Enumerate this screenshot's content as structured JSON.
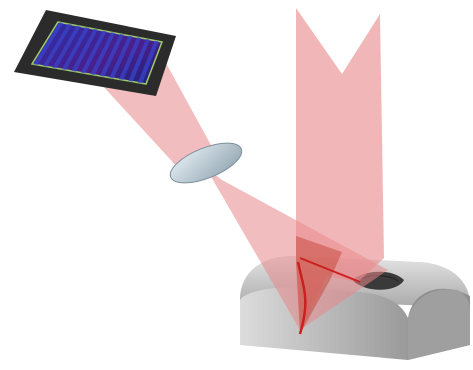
{
  "diagram": {
    "components": [
      {
        "id": "image-sensor",
        "kind": "camera-sensor-chip",
        "stripes": 12
      },
      {
        "id": "imaging-lens",
        "kind": "lens"
      },
      {
        "id": "laser-sheet",
        "kind": "laser-plane",
        "shape": "notched-fan"
      },
      {
        "id": "object",
        "kind": "half-cylinder-with-groove"
      },
      {
        "id": "viewing-cone",
        "kind": "light-path"
      }
    ],
    "colors": {
      "beam": "#e8878a",
      "beam_dark": "#c0392b",
      "laser_line": "#cc1f1f",
      "sensor_frame": "#2b2b2b",
      "sensor_fill": "#1a1f8c",
      "sensor_stripe": "#3a44c8",
      "sensor_border": "#9ecb6a",
      "lens": "#c9d6df",
      "object_top": "#cfcfcf",
      "object_front": "#b9b9b9"
    }
  }
}
